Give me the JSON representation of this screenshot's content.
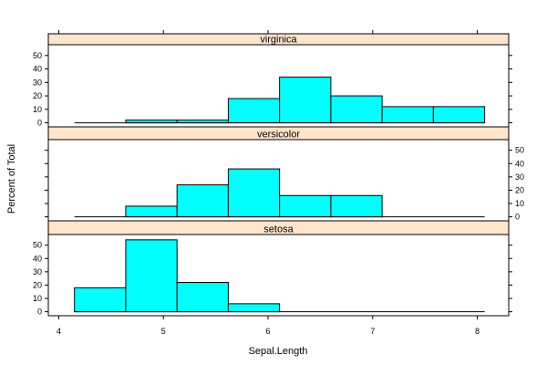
{
  "chart_data": {
    "type": "bar",
    "xlabel": "Sepal.Length",
    "ylabel": "Percent of Total",
    "xlim": [
      3.9,
      8.3
    ],
    "ylim": [
      -3,
      58
    ],
    "xticks": [
      4,
      5,
      6,
      7,
      8
    ],
    "yticks": [
      0,
      10,
      20,
      30,
      40,
      50
    ],
    "bin_edges": [
      4.15,
      4.64,
      5.13,
      5.62,
      6.11,
      6.6,
      7.09,
      7.58,
      8.07
    ],
    "bar_color": "#00ffff",
    "strip_color": "#ffe5cc",
    "panels": [
      {
        "name": "virginica",
        "values": [
          0,
          2,
          2,
          18,
          34,
          20,
          12,
          12
        ],
        "y_axis_side": "left"
      },
      {
        "name": "versicolor",
        "values": [
          0,
          8,
          24,
          36,
          16,
          16,
          0,
          0
        ],
        "y_axis_side": "right"
      },
      {
        "name": "setosa",
        "values": [
          18,
          54,
          22,
          6,
          0,
          0,
          0,
          0
        ],
        "y_axis_side": "left"
      }
    ]
  }
}
